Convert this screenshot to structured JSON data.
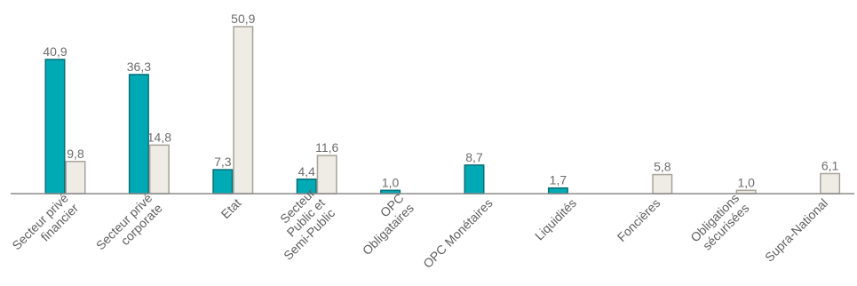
{
  "chart_data": {
    "type": "bar",
    "title": "",
    "xlabel": "",
    "ylabel": "",
    "ylim": [
      0,
      52
    ],
    "grid": false,
    "legend": "none",
    "categories": [
      [
        "Secteur privé",
        "financier"
      ],
      [
        "Secteur privé",
        "corporate"
      ],
      [
        "Etat"
      ],
      [
        "Secteur",
        "Public et",
        "Semi-Public"
      ],
      [
        "OPC",
        "Obligataires"
      ],
      [
        "OPC Monétaires"
      ],
      [
        "Liquidités"
      ],
      [
        "Foncières"
      ],
      [
        "Obligations",
        "sécurisées"
      ],
      [
        "Supra-National"
      ]
    ],
    "series": [
      {
        "color": "#00aab5",
        "stroke": "#0a6f77",
        "values": [
          40.9,
          36.3,
          7.3,
          4.4,
          1.0,
          8.7,
          1.7,
          null,
          null,
          null
        ],
        "labels": [
          "40,9",
          "36,3",
          "7,3",
          "4,4",
          "1,0",
          "8,7",
          "1,7",
          "",
          "",
          ""
        ]
      },
      {
        "color": "#efece6",
        "stroke": "#a7a39b",
        "values": [
          9.8,
          14.8,
          50.9,
          11.6,
          null,
          null,
          null,
          5.8,
          1.0,
          6.1
        ],
        "labels": [
          "9,8",
          "14,8",
          "50,9",
          "11,6",
          "",
          "",
          "",
          "5,8",
          "1,0",
          "6,1"
        ]
      }
    ]
  }
}
